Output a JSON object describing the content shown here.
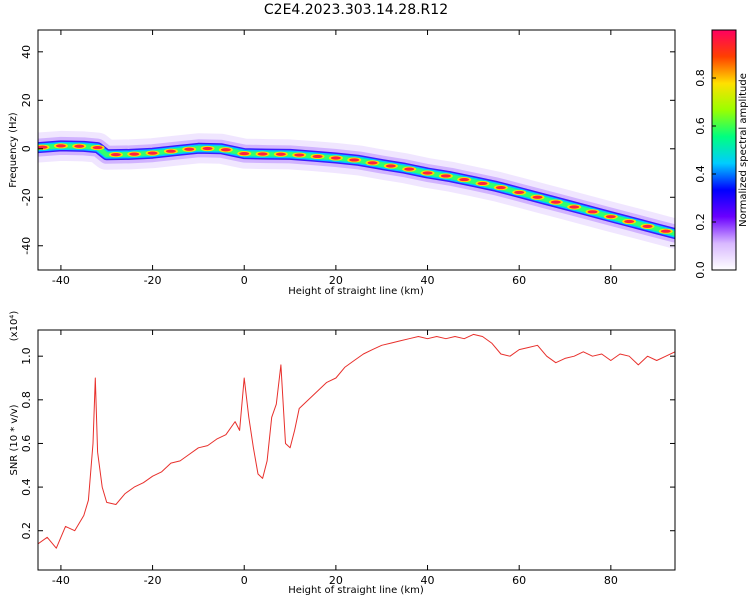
{
  "chart_data": [
    {
      "type": "heatmap",
      "title": "C2E4.2023.303.14.28.R12",
      "xlabel": "Height of straight line (km)",
      "ylabel": "Frequency (Hz)",
      "xlim": [
        -45,
        94
      ],
      "ylim": [
        -50,
        49
      ],
      "xticks": [
        -40,
        -20,
        0,
        20,
        40,
        60,
        80
      ],
      "yticks": [
        -40,
        -20,
        0,
        20,
        40
      ],
      "colorbar": {
        "label": "Normalized spectral amplitude",
        "range": [
          0,
          1
        ],
        "ticks": [
          "0.0",
          "0.2",
          "0.4",
          "0.6",
          "0.8"
        ],
        "colors": [
          "#ffffff",
          "#d8b8ff",
          "#6a00ff",
          "#0000ff",
          "#00ccff",
          "#00ff80",
          "#9aff00",
          "#ffe000",
          "#ff4000",
          "#ff0060"
        ]
      },
      "ridge": {
        "x": [
          -45,
          -40,
          -35,
          -32,
          -30,
          -25,
          -20,
          -15,
          -10,
          -5,
          0,
          5,
          10,
          15,
          20,
          25,
          30,
          35,
          40,
          45,
          50,
          55,
          60,
          65,
          70,
          75,
          80,
          85,
          90,
          94
        ],
        "y": [
          0.5,
          1.2,
          1.0,
          0.5,
          -2.5,
          -2.3,
          -1.8,
          -0.8,
          0.2,
          0.0,
          -2.0,
          -2.2,
          -2.3,
          -3.0,
          -3.8,
          -4.8,
          -6.5,
          -8.0,
          -10.0,
          -11.5,
          -13.5,
          -15.5,
          -18.0,
          -20.5,
          -23.0,
          -25.5,
          -28.0,
          -30.5,
          -33.0,
          -35.0
        ]
      }
    },
    {
      "type": "line",
      "title": "",
      "xlabel": "Height of straight line (km)",
      "ylabel": "SNR (10 * v/v)",
      "y_multiplier": "(x10⁴)",
      "xlim": [
        -45,
        94
      ],
      "ylim": [
        0.02,
        1.12
      ],
      "xticks": [
        -40,
        -20,
        0,
        20,
        40,
        60,
        80
      ],
      "yticks": [
        0.2,
        0.4,
        0.6,
        0.8,
        1.0
      ],
      "ytick_labels": [
        "0.2",
        "0.4",
        "0.6",
        "0.8",
        "1.0"
      ],
      "series": [
        {
          "color": "#e8302c",
          "x": [
            -45,
            -43,
            -41,
            -39,
            -37,
            -35,
            -34,
            -33,
            -32.5,
            -32,
            -31,
            -30,
            -28,
            -26,
            -24,
            -22,
            -20,
            -18,
            -16,
            -14,
            -12,
            -10,
            -8,
            -6,
            -4,
            -2,
            -1,
            0,
            1,
            2,
            3,
            4,
            5,
            6,
            7,
            8,
            9,
            10,
            11,
            12,
            14,
            16,
            18,
            20,
            22,
            24,
            26,
            28,
            30,
            32,
            34,
            36,
            38,
            40,
            42,
            44,
            46,
            48,
            50,
            52,
            54,
            56,
            58,
            60,
            62,
            64,
            66,
            68,
            70,
            72,
            74,
            76,
            78,
            80,
            82,
            84,
            86,
            88,
            90,
            92,
            94
          ],
          "y": [
            0.14,
            0.17,
            0.12,
            0.22,
            0.2,
            0.27,
            0.34,
            0.6,
            0.9,
            0.56,
            0.4,
            0.33,
            0.32,
            0.37,
            0.4,
            0.42,
            0.45,
            0.47,
            0.51,
            0.52,
            0.55,
            0.58,
            0.59,
            0.62,
            0.64,
            0.7,
            0.66,
            0.9,
            0.72,
            0.58,
            0.46,
            0.44,
            0.52,
            0.72,
            0.78,
            0.96,
            0.6,
            0.58,
            0.66,
            0.76,
            0.8,
            0.84,
            0.88,
            0.9,
            0.95,
            0.98,
            1.01,
            1.03,
            1.05,
            1.06,
            1.07,
            1.08,
            1.09,
            1.08,
            1.09,
            1.08,
            1.09,
            1.08,
            1.1,
            1.09,
            1.06,
            1.01,
            1.0,
            1.03,
            1.04,
            1.05,
            1.0,
            0.97,
            0.99,
            1.0,
            1.02,
            1.0,
            1.01,
            0.98,
            1.01,
            1.0,
            0.96,
            1.0,
            0.98,
            1.0,
            1.02
          ]
        }
      ]
    }
  ]
}
